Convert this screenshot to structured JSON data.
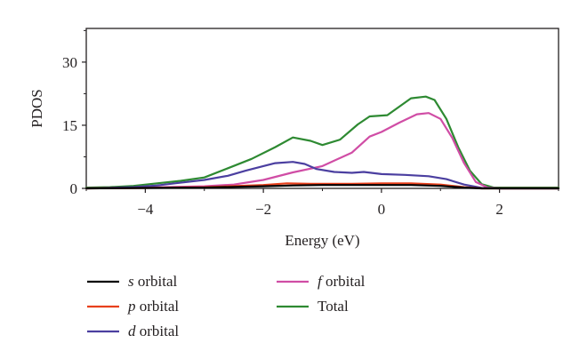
{
  "chart_data": {
    "type": "line",
    "title": "",
    "xlabel": "Energy (eV)",
    "ylabel": "PDOS",
    "xlim": [
      -5,
      3
    ],
    "ylim": [
      0,
      38
    ],
    "x_ticks": [
      {
        "value": -4,
        "label": "−4"
      },
      {
        "value": -2,
        "label": "−2"
      },
      {
        "value": 0,
        "label": "0"
      },
      {
        "value": 2,
        "label": "2"
      }
    ],
    "y_ticks": [
      {
        "value": 0,
        "label": "0"
      },
      {
        "value": 15,
        "label": "15"
      },
      {
        "value": 30,
        "label": "30"
      }
    ],
    "grid": false,
    "legend_position": "below",
    "series": [
      {
        "name": "s orbital",
        "symbol": "s",
        "suffix": " orbital",
        "color": "#000000",
        "points": [
          [
            -5,
            0
          ],
          [
            -4,
            0.1
          ],
          [
            -3,
            0.2
          ],
          [
            -2,
            0.5
          ],
          [
            -1.5,
            0.7
          ],
          [
            -1,
            0.8
          ],
          [
            0,
            0.8
          ],
          [
            0.5,
            0.8
          ],
          [
            1,
            0.6
          ],
          [
            1.4,
            0.2
          ],
          [
            1.7,
            0
          ],
          [
            3,
            0
          ]
        ]
      },
      {
        "name": "p orbital",
        "symbol": "p",
        "suffix": " orbital",
        "color": "#e8401c",
        "points": [
          [
            -5,
            0
          ],
          [
            -4,
            0.1
          ],
          [
            -3,
            0.3
          ],
          [
            -2,
            0.8
          ],
          [
            -1.6,
            1.2
          ],
          [
            -1.2,
            1.1
          ],
          [
            -0.5,
            1.1
          ],
          [
            0,
            1.2
          ],
          [
            0.5,
            1.2
          ],
          [
            1,
            0.9
          ],
          [
            1.4,
            0.3
          ],
          [
            1.7,
            0
          ],
          [
            3,
            0
          ]
        ]
      },
      {
        "name": "d orbital",
        "symbol": "d",
        "suffix": " orbital",
        "color": "#4b3fa0",
        "points": [
          [
            -5,
            0
          ],
          [
            -4.2,
            0.3
          ],
          [
            -3.8,
            0.7
          ],
          [
            -3.5,
            1.2
          ],
          [
            -3,
            2
          ],
          [
            -2.6,
            3
          ],
          [
            -2.3,
            4.2
          ],
          [
            -2,
            5.3
          ],
          [
            -1.8,
            6
          ],
          [
            -1.5,
            6.3
          ],
          [
            -1.3,
            5.8
          ],
          [
            -1.1,
            4.6
          ],
          [
            -0.8,
            3.9
          ],
          [
            -0.5,
            3.7
          ],
          [
            -0.3,
            3.9
          ],
          [
            0,
            3.4
          ],
          [
            0.4,
            3.2
          ],
          [
            0.8,
            2.9
          ],
          [
            1.1,
            2.2
          ],
          [
            1.4,
            0.9
          ],
          [
            1.7,
            0.1
          ],
          [
            2,
            0
          ],
          [
            3,
            0
          ]
        ]
      },
      {
        "name": "f orbital",
        "symbol": "f",
        "suffix": " orbital",
        "color": "#d04da5",
        "points": [
          [
            -5,
            0
          ],
          [
            -4,
            0.2
          ],
          [
            -3,
            0.5
          ],
          [
            -2.5,
            0.9
          ],
          [
            -2,
            2
          ],
          [
            -1.5,
            3.8
          ],
          [
            -1,
            5.3
          ],
          [
            -0.5,
            8.5
          ],
          [
            -0.2,
            12.3
          ],
          [
            0,
            13.4
          ],
          [
            0.3,
            15.6
          ],
          [
            0.6,
            17.6
          ],
          [
            0.8,
            17.9
          ],
          [
            1,
            16.5
          ],
          [
            1.2,
            12
          ],
          [
            1.4,
            6
          ],
          [
            1.6,
            1.5
          ],
          [
            1.8,
            0.2
          ],
          [
            2,
            0
          ],
          [
            3,
            0
          ]
        ]
      },
      {
        "name": "Total",
        "symbol": "",
        "suffix": "Total",
        "color": "#2e8a32",
        "points": [
          [
            -5,
            0.2
          ],
          [
            -4.6,
            0.3
          ],
          [
            -4.2,
            0.6
          ],
          [
            -3.8,
            1.2
          ],
          [
            -3.4,
            1.8
          ],
          [
            -3,
            2.6
          ],
          [
            -2.6,
            4.8
          ],
          [
            -2.2,
            7
          ],
          [
            -1.8,
            9.8
          ],
          [
            -1.5,
            12.1
          ],
          [
            -1.2,
            11.3
          ],
          [
            -1,
            10.3
          ],
          [
            -0.7,
            11.6
          ],
          [
            -0.4,
            15.2
          ],
          [
            -0.2,
            17.1
          ],
          [
            0.1,
            17.4
          ],
          [
            0.3,
            19.4
          ],
          [
            0.5,
            21.4
          ],
          [
            0.75,
            21.8
          ],
          [
            0.9,
            21
          ],
          [
            1.1,
            16.5
          ],
          [
            1.3,
            9.8
          ],
          [
            1.5,
            4.2
          ],
          [
            1.7,
            1
          ],
          [
            1.9,
            0.2
          ],
          [
            2.2,
            0.2
          ],
          [
            3,
            0.2
          ]
        ]
      }
    ]
  }
}
